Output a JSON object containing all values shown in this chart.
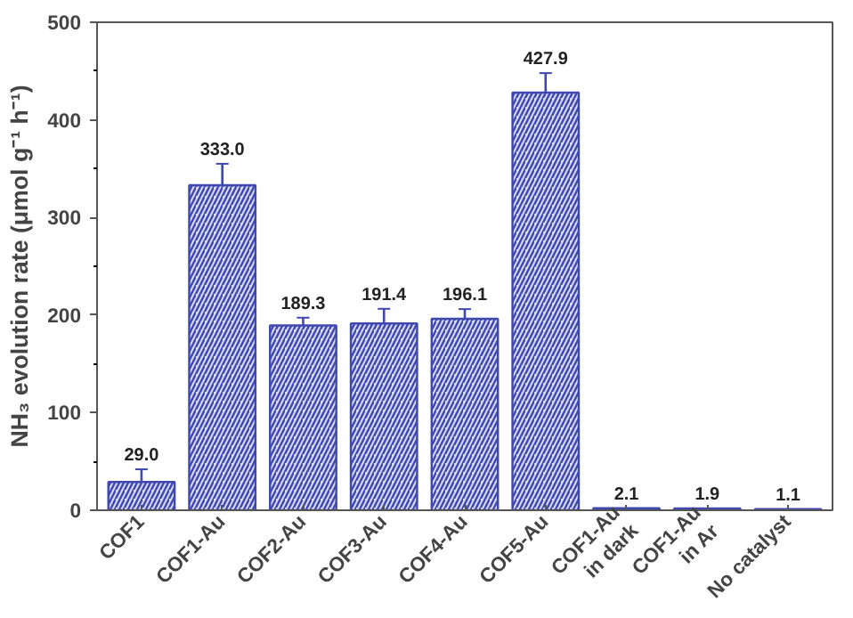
{
  "chart_data": {
    "type": "bar",
    "ylabel": "NH₃ evolution rate (μmol g⁻¹ h⁻¹)",
    "categories": [
      "COF1",
      "COF1-Au",
      "COF2-Au",
      "COF3-Au",
      "COF4-Au",
      "COF5-Au",
      "COF1-Au\nin dark",
      "COF1-Au\nin Ar",
      "No catalyst"
    ],
    "values": [
      29.0,
      333.0,
      189.3,
      191.4,
      196.1,
      427.9,
      2.1,
      1.9,
      1.1
    ],
    "value_labels": [
      "29.0",
      "333.0",
      "189.3",
      "191.4",
      "196.1",
      "427.9",
      "2.1",
      "1.9",
      "1.1"
    ],
    "errors": [
      13,
      22,
      8,
      15,
      10,
      20,
      null,
      null,
      null
    ],
    "color": "#3f48b0",
    "ylim": [
      0,
      500
    ],
    "yticks": [
      0,
      100,
      200,
      300,
      400,
      500
    ],
    "grid": false
  }
}
